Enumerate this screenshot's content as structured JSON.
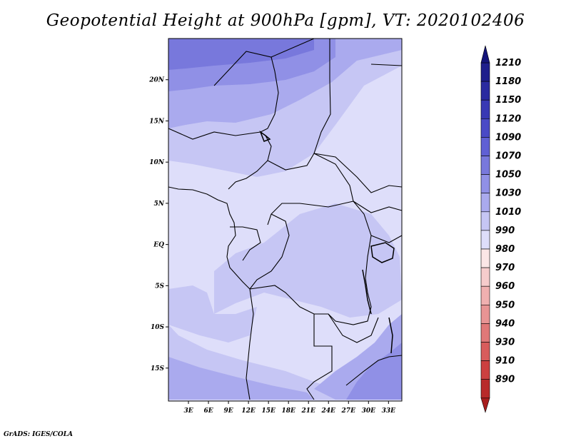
{
  "title": "Geopotential Height at 900hPa [gpm], VT: 2020102406",
  "credit": "GrADS: IGES/COLA",
  "map": {
    "lon_range": [
      0,
      35
    ],
    "lat_range": [
      -19,
      25
    ],
    "lon_ticks": [
      {
        "value": 3,
        "label": "3E"
      },
      {
        "value": 6,
        "label": "6E"
      },
      {
        "value": 9,
        "label": "9E"
      },
      {
        "value": 12,
        "label": "12E"
      },
      {
        "value": 15,
        "label": "15E"
      },
      {
        "value": 18,
        "label": "18E"
      },
      {
        "value": 21,
        "label": "21E"
      },
      {
        "value": 24,
        "label": "24E"
      },
      {
        "value": 27,
        "label": "27E"
      },
      {
        "value": 30,
        "label": "30E"
      },
      {
        "value": 33,
        "label": "33E"
      }
    ],
    "lat_ticks": [
      {
        "value": 20,
        "label": "20N"
      },
      {
        "value": 15,
        "label": "15N"
      },
      {
        "value": 10,
        "label": "10N"
      },
      {
        "value": 5,
        "label": "5N"
      },
      {
        "value": 0,
        "label": "EQ"
      },
      {
        "value": -5,
        "label": "5S"
      },
      {
        "value": -10,
        "label": "10S"
      },
      {
        "value": -15,
        "label": "15S"
      }
    ]
  },
  "colorbar": {
    "levels": [
      {
        "label": "1210",
        "color": "#1e1e8c"
      },
      {
        "label": "1180",
        "color": "#2a2aa0"
      },
      {
        "label": "1150",
        "color": "#3838b4"
      },
      {
        "label": "1120",
        "color": "#4a4ac6"
      },
      {
        "label": "1090",
        "color": "#6060d4"
      },
      {
        "label": "1070",
        "color": "#7878dc"
      },
      {
        "label": "1050",
        "color": "#9090e6"
      },
      {
        "label": "1030",
        "color": "#aaaaee"
      },
      {
        "label": "1010",
        "color": "#c6c6f4"
      },
      {
        "label": "990",
        "color": "#dedefa"
      },
      {
        "label": "980",
        "color": "#fbe6e6"
      },
      {
        "label": "970",
        "color": "#f6cccc"
      },
      {
        "label": "960",
        "color": "#f0b0b0"
      },
      {
        "label": "950",
        "color": "#e89494"
      },
      {
        "label": "940",
        "color": "#e07878"
      },
      {
        "label": "930",
        "color": "#d85c5c"
      },
      {
        "label": "910",
        "color": "#cc4040"
      },
      {
        "label": "890",
        "color": "#b82a2a"
      }
    ],
    "top_arrow_color": "#14147a",
    "bottom_arrow_color": "#a81e1e"
  },
  "field_colors": {
    "c1090": "#7878dc",
    "c1070": "#9090e6",
    "c1050": "#aaaaee",
    "c1030": "#c6c6f4",
    "c1010": "#dedefa"
  }
}
